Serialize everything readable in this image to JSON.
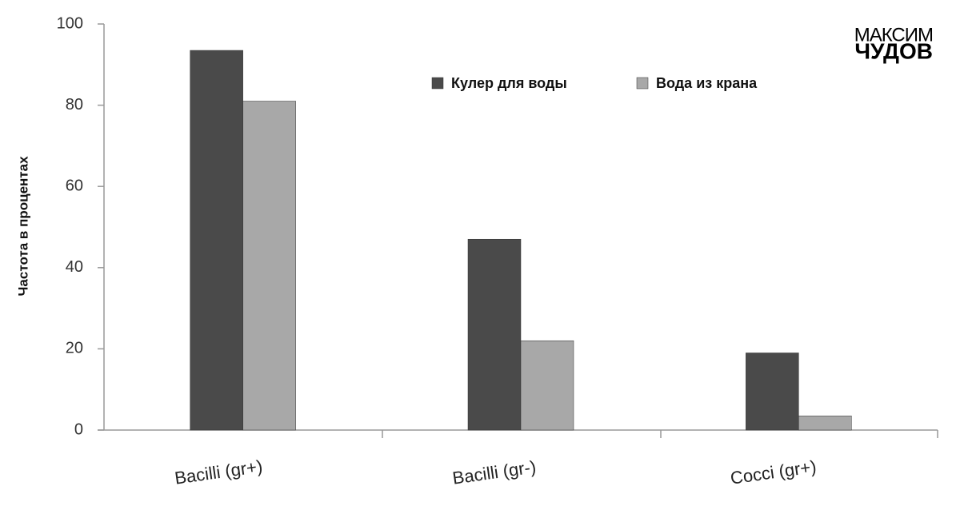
{
  "chart_data": {
    "type": "bar",
    "y_label": "Частота в процентах",
    "categories": [
      "Bacilli (gr+)",
      "Bacilli (gr-)",
      "Cocci (gr+)"
    ],
    "series": [
      {
        "name": "Кулер для воды",
        "color": "#4a4a4a",
        "values": [
          93.5,
          47,
          19
        ]
      },
      {
        "name": "Вода из крана",
        "color": "#a8a8a8",
        "values": [
          81,
          22,
          3.5
        ]
      }
    ],
    "ylim": [
      0,
      100
    ],
    "yticks": [
      0,
      20,
      40,
      60,
      80,
      100
    ],
    "watermark": [
      "МАКСИМ",
      "ЧУДОВ"
    ]
  }
}
